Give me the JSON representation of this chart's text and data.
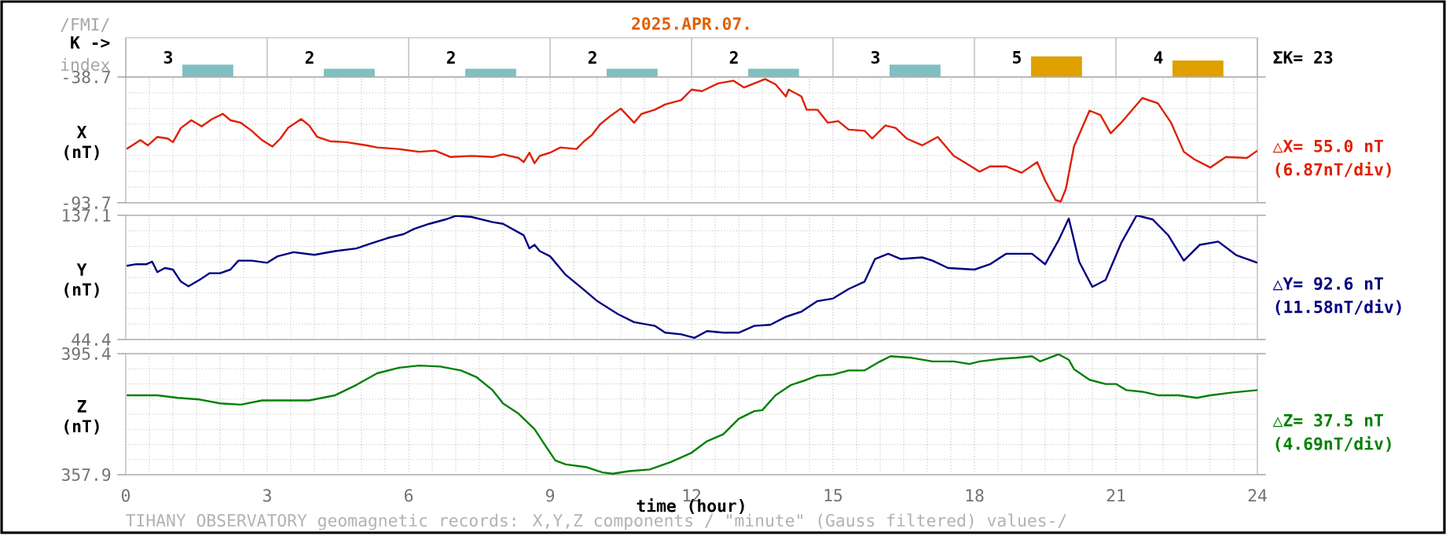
{
  "chart_data": [
    {
      "type": "bar",
      "title": "2025.APR.07.",
      "ylabel": "K ->",
      "categories": [
        null,
        null,
        null,
        null,
        null,
        null,
        null,
        null
      ],
      "values": [
        3,
        2,
        2,
        2,
        2,
        3,
        5,
        4
      ],
      "colors": [
        "#80c0c0",
        "#80c0c0",
        "#80c0c0",
        "#80c0c0",
        "#80c0c0",
        "#80c0c0",
        "#e0a000",
        "#e0a000"
      ],
      "data_labels": true,
      "grid": "x",
      "tick_labels": false,
      "annotations": [
        "/FMI/",
        "index",
        "ΣK= 23"
      ]
    },
    {
      "type": "line",
      "ylabel": "X (nT)",
      "color": "#e02000",
      "xlim": [
        0,
        24
      ],
      "xticks": [
        0,
        3,
        6,
        9,
        12,
        15,
        18,
        21,
        24
      ],
      "ylim": [
        -93.7,
        -38.7
      ],
      "yticks": [
        -93.7,
        -38.7
      ],
      "grid": true,
      "tick_labels": "y",
      "x": [
        0.02,
        0.31,
        0.47,
        0.67,
        0.89,
        1.0,
        1.17,
        1.39,
        1.61,
        1.83,
        2.06,
        2.22,
        2.44,
        2.67,
        2.89,
        3.11,
        3.28,
        3.44,
        3.72,
        3.89,
        4.06,
        4.33,
        4.67,
        5.11,
        5.33,
        5.78,
        6.22,
        6.56,
        6.89,
        7.33,
        7.78,
        8.0,
        8.33,
        8.44,
        8.56,
        8.67,
        8.78,
        9.0,
        9.22,
        9.56,
        9.72,
        9.89,
        10.06,
        10.28,
        10.5,
        10.78,
        10.94,
        11.22,
        11.44,
        11.78,
        12.0,
        12.22,
        12.56,
        12.89,
        13.11,
        13.33,
        13.56,
        13.78,
        14.0,
        14.06,
        14.33,
        14.44,
        14.67,
        14.89,
        15.11,
        15.33,
        15.67,
        15.83,
        16.11,
        16.33,
        16.56,
        16.89,
        17.22,
        17.56,
        17.78,
        18.11,
        18.33,
        18.67,
        19.0,
        19.33,
        19.5,
        19.72,
        19.83,
        19.94,
        20.11,
        20.44,
        20.67,
        20.89,
        21.11,
        21.56,
        21.89,
        22.17,
        22.44,
        22.67,
        23.0,
        23.33,
        23.78,
        24.0
      ],
      "values": [
        -70.2,
        -66.3,
        -68.6,
        -64.9,
        -65.6,
        -67.2,
        -61.0,
        -57.6,
        -60.3,
        -57.1,
        -54.8,
        -57.6,
        -58.7,
        -62.2,
        -66.3,
        -69.1,
        -65.6,
        -61.0,
        -57.1,
        -59.9,
        -64.9,
        -66.8,
        -67.2,
        -68.6,
        -69.5,
        -70.2,
        -71.4,
        -70.9,
        -73.7,
        -73.2,
        -73.7,
        -72.5,
        -74.1,
        -75.9,
        -71.8,
        -76.4,
        -73.2,
        -71.8,
        -69.5,
        -70.2,
        -66.8,
        -64.0,
        -59.4,
        -55.7,
        -52.5,
        -58.7,
        -54.8,
        -53.0,
        -50.7,
        -48.8,
        -44.2,
        -44.9,
        -41.5,
        -40.3,
        -43.3,
        -41.5,
        -39.6,
        -41.9,
        -47.2,
        -44.2,
        -47.2,
        -53.0,
        -53.0,
        -58.7,
        -58.0,
        -61.7,
        -62.2,
        -65.6,
        -59.9,
        -61.0,
        -65.6,
        -68.6,
        -64.9,
        -73.2,
        -75.9,
        -80.1,
        -77.8,
        -77.8,
        -80.6,
        -75.9,
        -84.0,
        -92.5,
        -93.2,
        -87.5,
        -69.1,
        -53.4,
        -55.3,
        -63.3,
        -58.7,
        -47.9,
        -50.2,
        -58.7,
        -71.4,
        -74.8,
        -78.3,
        -73.7,
        -74.1,
        -70.9
      ],
      "annotations": [
        "△X= 55.0 nT",
        "(6.87nT/div)"
      ]
    },
    {
      "type": "line",
      "ylabel": "Y (nT)",
      "color": "#000080",
      "xlim": [
        0,
        24
      ],
      "xticks": [
        0,
        3,
        6,
        9,
        12,
        15,
        18,
        21,
        24
      ],
      "ylim": [
        44.4,
        137.1
      ],
      "yticks": [
        44.4,
        137.1
      ],
      "grid": true,
      "tick_labels": "y",
      "x": [
        0.02,
        0.22,
        0.44,
        0.56,
        0.67,
        0.83,
        1.0,
        1.17,
        1.33,
        1.56,
        1.78,
        2.0,
        2.22,
        2.39,
        2.67,
        3.0,
        3.22,
        3.56,
        4.0,
        4.44,
        4.89,
        5.22,
        5.56,
        5.89,
        6.11,
        6.44,
        6.78,
        7.0,
        7.33,
        7.78,
        8.0,
        8.44,
        8.56,
        8.67,
        8.78,
        9.0,
        9.33,
        9.67,
        10.0,
        10.44,
        10.78,
        11.22,
        11.44,
        11.78,
        12.06,
        12.33,
        12.67,
        13.0,
        13.33,
        13.67,
        14.0,
        14.33,
        14.67,
        15.0,
        15.33,
        15.67,
        15.89,
        16.17,
        16.44,
        16.89,
        17.11,
        17.44,
        18.0,
        18.33,
        18.67,
        19.22,
        19.5,
        19.78,
        20.0,
        20.22,
        20.5,
        20.78,
        21.11,
        21.44,
        21.78,
        22.11,
        22.44,
        22.78,
        23.17,
        23.56,
        24.0
      ],
      "values": [
        99.4,
        100.6,
        100.6,
        102.5,
        94.7,
        97.8,
        96.6,
        87.6,
        84.1,
        88.8,
        93.9,
        93.9,
        96.6,
        103.3,
        103.3,
        101.7,
        106.5,
        109.6,
        107.6,
        110.4,
        112.4,
        116.3,
        120.2,
        123.0,
        126.9,
        130.8,
        134.0,
        136.7,
        135.9,
        132.0,
        130.8,
        122.2,
        112.4,
        115.1,
        110.4,
        106.5,
        92.7,
        82.9,
        73.1,
        63.3,
        57.4,
        54.6,
        49.5,
        48.3,
        45.6,
        50.7,
        49.5,
        49.5,
        54.6,
        55.4,
        61.3,
        65.2,
        73.1,
        75.0,
        82.1,
        87.6,
        104.5,
        108.4,
        104.5,
        105.7,
        103.3,
        97.8,
        96.6,
        100.6,
        108.4,
        108.4,
        100.6,
        118.2,
        134.7,
        102.5,
        83.7,
        88.8,
        116.3,
        137.1,
        134.0,
        122.2,
        103.3,
        115.1,
        117.5,
        107.2,
        101.7
      ],
      "annotations": [
        "△Y= 92.6 nT",
        "(11.58nT/div)"
      ]
    },
    {
      "type": "line",
      "ylabel": "Z (nT)",
      "xlabel": "time (hour)",
      "color": "#008000",
      "xlim": [
        0,
        24
      ],
      "xticks": [
        0,
        3,
        6,
        9,
        12,
        15,
        18,
        21,
        24
      ],
      "ylim": [
        357.9,
        395.4
      ],
      "yticks": [
        357.9,
        395.4
      ],
      "grid": true,
      "x": [
        0.02,
        0.67,
        1.11,
        1.56,
        2.0,
        2.44,
        2.89,
        3.33,
        3.89,
        4.44,
        4.89,
        5.33,
        5.78,
        6.22,
        6.67,
        7.11,
        7.44,
        7.78,
        8.0,
        8.33,
        8.67,
        8.89,
        9.11,
        9.33,
        9.78,
        10.11,
        10.33,
        10.67,
        11.11,
        11.56,
        12.0,
        12.33,
        12.67,
        13.0,
        13.33,
        13.5,
        13.78,
        14.11,
        14.44,
        14.67,
        15.0,
        15.33,
        15.67,
        16.0,
        16.22,
        16.67,
        17.11,
        17.56,
        17.89,
        18.11,
        18.56,
        18.89,
        19.22,
        19.39,
        19.78,
        20.0,
        20.11,
        20.44,
        20.78,
        21.0,
        21.22,
        21.56,
        21.89,
        22.33,
        22.72,
        23.0,
        23.44,
        24.0
      ],
      "values": [
        382.5,
        382.5,
        381.7,
        381.2,
        380.0,
        379.6,
        380.9,
        380.9,
        380.9,
        382.5,
        385.7,
        389.3,
        391.0,
        391.7,
        391.4,
        390.2,
        388.1,
        384.1,
        380.0,
        376.8,
        372.0,
        367.1,
        362.3,
        361.1,
        360.2,
        358.6,
        358.2,
        359.0,
        359.5,
        361.8,
        364.7,
        368.3,
        370.4,
        375.2,
        377.6,
        377.9,
        382.5,
        385.7,
        387.3,
        388.6,
        388.9,
        390.2,
        390.2,
        393.0,
        394.6,
        394.1,
        393.0,
        393.0,
        392.2,
        393.0,
        393.8,
        394.1,
        394.6,
        393.0,
        395.2,
        393.5,
        390.6,
        387.3,
        386.0,
        386.0,
        384.1,
        383.6,
        382.5,
        382.5,
        381.7,
        382.5,
        383.3,
        384.1
      ],
      "annotations": [
        "△Z= 37.5 nT",
        "(4.69nT/div)",
        "TIHANY OBSERVATORY geomagnetic records: X,Y,Z components / \"minute\" (Gauss filtered) values-/"
      ]
    }
  ]
}
